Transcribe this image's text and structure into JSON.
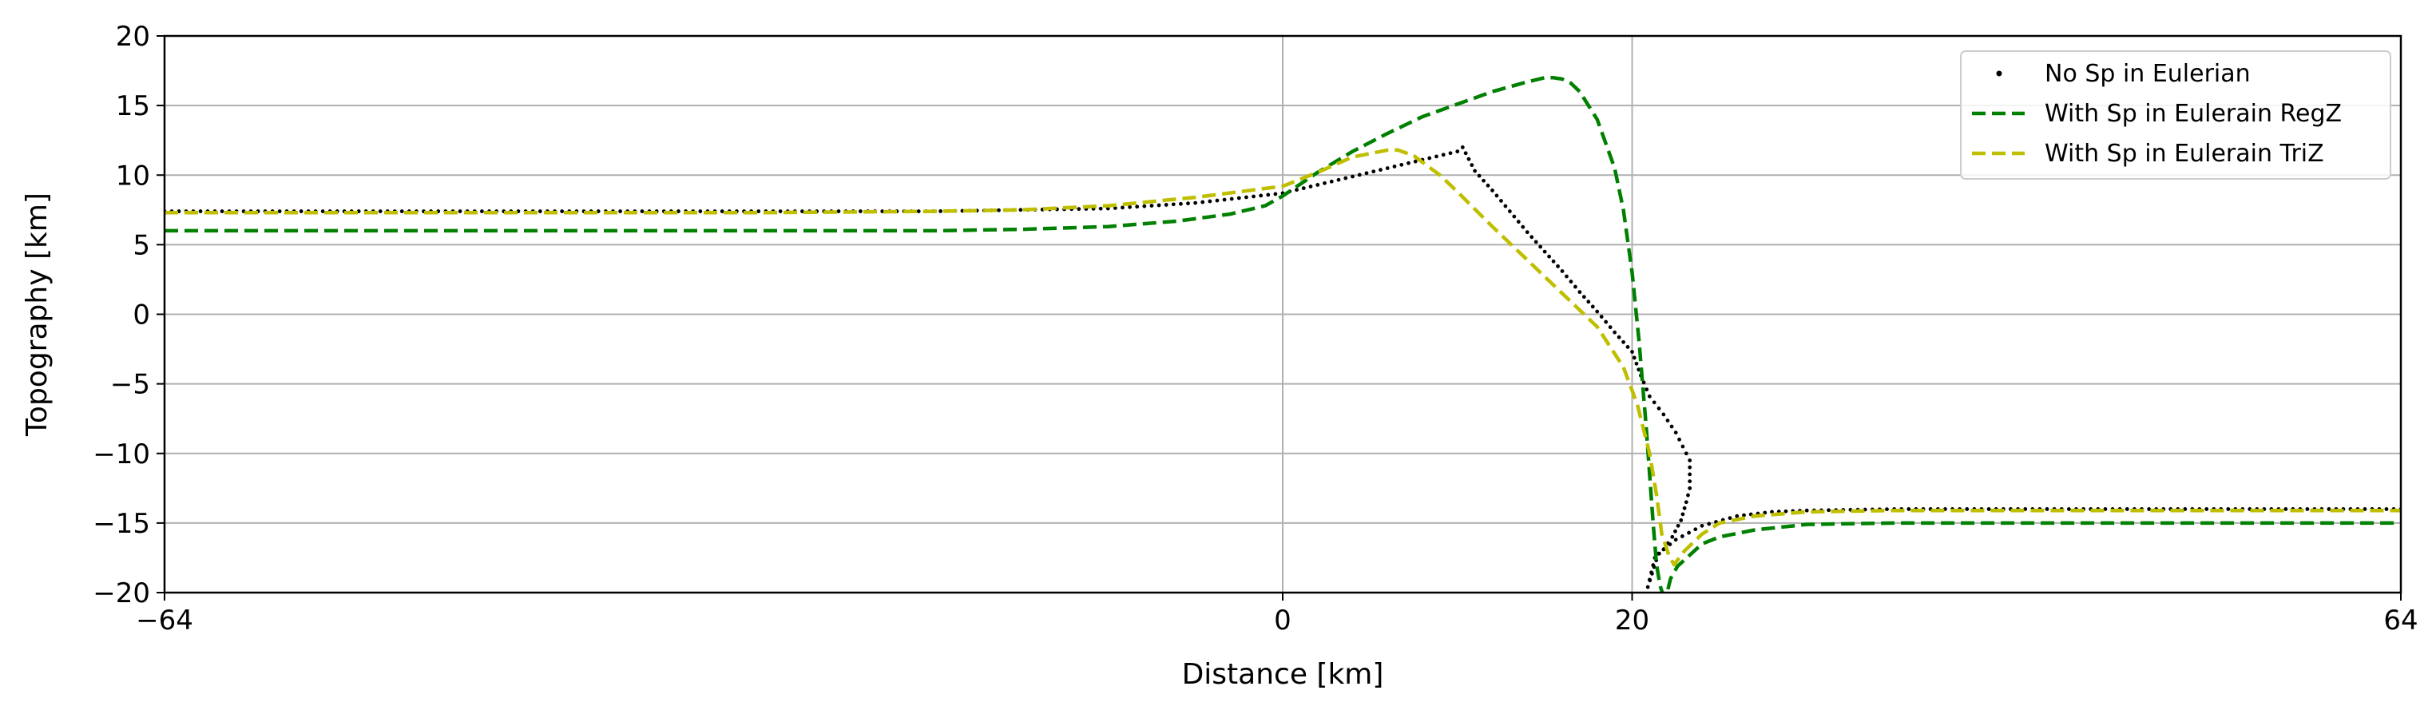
{
  "chart_data": {
    "type": "line",
    "xlabel": "Distance [km]",
    "ylabel": "Topography [km]",
    "xlim": [
      -64,
      64
    ],
    "ylim": [
      -20,
      20
    ],
    "xticks": [
      -64,
      0,
      20,
      64
    ],
    "xtick_labels": [
      "−64",
      "0",
      "20",
      "64"
    ],
    "yticks": [
      -20,
      -15,
      -10,
      -5,
      0,
      5,
      10,
      15,
      20
    ],
    "ytick_labels": [
      "−20",
      "−15",
      "−10",
      "−5",
      "0",
      "5",
      "10",
      "15",
      "20"
    ],
    "grid": true,
    "legend_position": "top-right",
    "series": [
      {
        "name": "No Sp in Eulerian",
        "style": "dots",
        "color": "#000000",
        "x": [
          -64,
          -50,
          -40,
          -30,
          -20,
          -15,
          -10,
          -5,
          0,
          2,
          4,
          6,
          8,
          10,
          10.3,
          11,
          12,
          13,
          14,
          15,
          16,
          17,
          18,
          19,
          20,
          20.5,
          21,
          21.8,
          22.5,
          23.3,
          23.3,
          23.1,
          22.8,
          22.3,
          21.8,
          21.3,
          20.9,
          21.5,
          22.5,
          24,
          26,
          28,
          30,
          35,
          40,
          50,
          64
        ],
        "y": [
          7.4,
          7.4,
          7.4,
          7.4,
          7.4,
          7.5,
          7.6,
          8.0,
          8.7,
          9.3,
          9.9,
          10.5,
          11.1,
          11.7,
          12.0,
          10.3,
          8.9,
          7.4,
          5.9,
          4.5,
          3.1,
          1.6,
          0.2,
          -1.3,
          -2.7,
          -4.4,
          -5.9,
          -7.2,
          -8.5,
          -10.5,
          -12.5,
          -13.5,
          -14.8,
          -16.0,
          -16.9,
          -17.5,
          -19.6,
          -17.2,
          -16.2,
          -15.2,
          -14.5,
          -14.2,
          -14.1,
          -14.0,
          -14.0,
          -14.0,
          -14.0
        ]
      },
      {
        "name": "With Sp in Eulerain RegZ",
        "style": "dashed",
        "color": "#008000",
        "x": [
          -64,
          -50,
          -40,
          -30,
          -20,
          -15,
          -10,
          -6,
          -3,
          -1,
          0,
          2,
          4,
          6,
          8,
          10,
          12,
          14,
          15,
          15.5,
          16,
          16.5,
          17,
          18,
          19,
          19.5,
          20,
          20.2,
          20.4,
          20.6,
          20.8,
          21.0,
          21.2,
          21.4,
          21.6,
          21.8,
          22.0,
          22.2,
          22.6,
          23.3,
          24,
          25,
          27,
          30,
          35,
          40,
          50,
          64
        ],
        "y": [
          6.0,
          6.0,
          6.0,
          6.0,
          6.0,
          6.1,
          6.3,
          6.7,
          7.2,
          7.8,
          8.5,
          10.2,
          11.7,
          13.0,
          14.2,
          15.1,
          16.0,
          16.7,
          17.0,
          17.0,
          16.9,
          16.6,
          16.0,
          14.0,
          10.5,
          7.5,
          3.0,
          0.5,
          -2.0,
          -5.0,
          -8.0,
          -11.5,
          -15.0,
          -18.0,
          -19.5,
          -20.3,
          -20.0,
          -19.0,
          -18.1,
          -17.3,
          -16.5,
          -16.0,
          -15.5,
          -15.1,
          -15.0,
          -15.0,
          -15.0,
          -15.0
        ]
      },
      {
        "name": "With Sp in Eulerain TriZ",
        "style": "dashed",
        "color": "#bfbf00",
        "x": [
          -64,
          -50,
          -40,
          -30,
          -20,
          -15,
          -10,
          -5,
          0,
          2,
          4,
          6,
          6.6,
          7.5,
          9,
          10,
          12,
          14,
          16,
          18,
          19.5,
          20.3,
          21.0,
          21.4,
          21.7,
          22.1,
          22.4,
          23.0,
          24,
          25,
          27,
          30,
          35,
          40,
          50,
          64
        ],
        "y": [
          7.3,
          7.3,
          7.3,
          7.3,
          7.4,
          7.5,
          7.8,
          8.4,
          9.2,
          10.2,
          11.3,
          11.8,
          11.8,
          11.4,
          10.0,
          8.8,
          6.3,
          3.9,
          1.5,
          -0.9,
          -3.8,
          -6.5,
          -10.0,
          -13.0,
          -15.8,
          -17.3,
          -18.0,
          -17.0,
          -15.8,
          -15.0,
          -14.5,
          -14.2,
          -14.1,
          -14.1,
          -14.1,
          -14.1
        ]
      }
    ]
  }
}
